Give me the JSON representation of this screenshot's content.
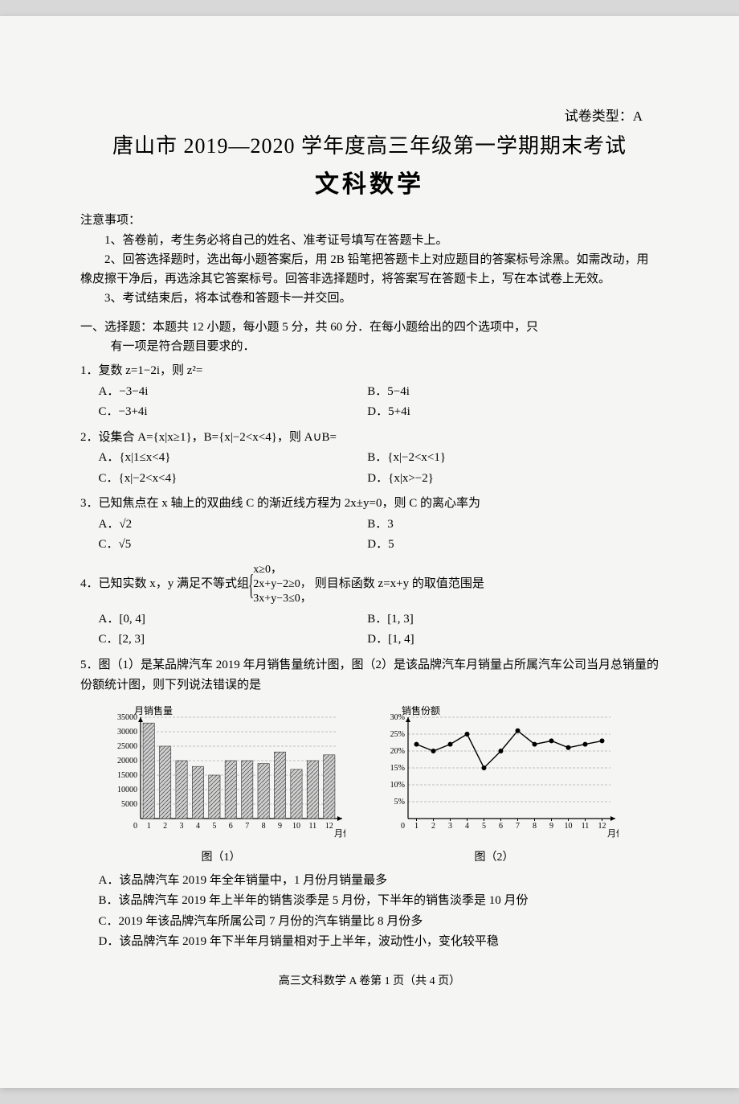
{
  "paper_type": "试卷类型：A",
  "title_main": "唐山市 2019—2020 学年度高三年级第一学期期末考试",
  "title_sub": "文科数学",
  "notice_header": "注意事项：",
  "notices": [
    "1、答卷前，考生务必将自己的姓名、准考证号填写在答题卡上。",
    "2、回答选择题时，选出每小题答案后，用 2B 铅笔把答题卡上对应题目的答案标号涂黑。如需改动，用橡皮擦干净后，再选涂其它答案标号。回答非选择题时，将答案写在答题卡上，写在本试卷上无效。",
    "3、考试结束后，将本试卷和答题卡一并交回。"
  ],
  "section1_l1": "一、选择题：本题共 12 小题，每小题 5 分，共 60 分．在每小题给出的四个选项中，只",
  "section1_l2": "有一项是符合题目要求的．",
  "q1": {
    "stem": "1．复数 z=1−2i，则 z²=",
    "A": "A．−3−4i",
    "B": "B．5−4i",
    "C": "C．−3+4i",
    "D": "D．5+4i"
  },
  "q2": {
    "stem": "2．设集合 A={x|x≥1}，B={x|−2<x<4}，则 A∪B=",
    "A": "A．{x|1≤x<4}",
    "B": "B．{x|−2<x<1}",
    "C": "C．{x|−2<x<4}",
    "D": "D．{x|x>−2}"
  },
  "q3": {
    "stem": "3．已知焦点在 x 轴上的双曲线 C 的渐近线方程为 2x±y=0，则 C 的离心率为",
    "A": "A．√2",
    "B": "B．3",
    "C": "C．√5",
    "D": "D．5"
  },
  "q4": {
    "stem_pre": "4．已知实数 x，y 满足不等式组",
    "c1": "x≥0，",
    "c2": "2x+y−2≥0，",
    "c3": "3x+y−3≤0，",
    "stem_post": "则目标函数 z=x+y 的取值范围是",
    "A": "A．[0, 4]",
    "B": "B．[1, 3]",
    "C": "C．[2, 3]",
    "D": "D．[1, 4]"
  },
  "q5": {
    "stem": "5．图（1）是某品牌汽车 2019 年月销售量统计图，图（2）是该品牌汽车月销量占所属汽车公司当月总销量的份额统计图，则下列说法错误的是",
    "cap1": "图（1）",
    "cap2": "图（2）",
    "A": "A．该品牌汽车 2019 年全年销量中，1 月份月销量最多",
    "B": "B．该品牌汽车 2019 年上半年的销售淡季是 5 月份，下半年的销售淡季是 10 月份",
    "C": "C．2019 年该品牌汽车所属公司 7 月份的汽车销量比 8 月份多",
    "D": "D．该品牌汽车 2019 年下半年月销量相对于上半年，波动性小，变化较平稳"
  },
  "chart1": {
    "type": "bar",
    "ylabel": "月销售量",
    "xlabel": "月份",
    "categories": [
      1,
      2,
      3,
      4,
      5,
      6,
      7,
      8,
      9,
      10,
      11,
      12
    ],
    "values": [
      33000,
      25000,
      20000,
      18000,
      15000,
      20000,
      20000,
      19000,
      23000,
      17000,
      20000,
      22000
    ],
    "ylim": [
      0,
      35000
    ],
    "ytick_step": 5000,
    "bar_color": "#666666",
    "hatch": true,
    "grid_color": "#888888",
    "axis_color": "#000000",
    "label_fontsize": 10
  },
  "chart2": {
    "type": "line",
    "ylabel": "销售份额",
    "xlabel": "月份",
    "categories": [
      1,
      2,
      3,
      4,
      5,
      6,
      7,
      8,
      9,
      10,
      11,
      12
    ],
    "values": [
      22,
      20,
      22,
      25,
      15,
      20,
      26,
      22,
      23,
      21,
      22,
      23
    ],
    "ylim": [
      0,
      30
    ],
    "ytick_step": 5,
    "yformat": "percent",
    "line_color": "#000000",
    "marker": "circle",
    "marker_size": 3,
    "grid_color": "#888888",
    "axis_color": "#000000",
    "label_fontsize": 10
  },
  "footer": "高三文科数学 A 卷第 1 页（共 4 页）"
}
